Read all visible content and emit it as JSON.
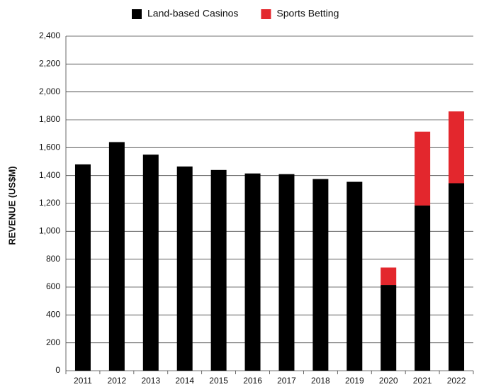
{
  "chart_data": {
    "type": "stacked_bar",
    "y_label": "REVENUE (US$M)",
    "categories": [
      "2011",
      "2012",
      "2013",
      "2014",
      "2015",
      "2016",
      "2017",
      "2018",
      "2019",
      "2020",
      "2021",
      "2022"
    ],
    "series": [
      {
        "name": "Land-based Casinos",
        "color": "#000000",
        "values": [
          1480,
          1640,
          1550,
          1465,
          1440,
          1415,
          1410,
          1375,
          1355,
          615,
          1185,
          1345
        ]
      },
      {
        "name": "Sports Betting",
        "color": "#e3272d",
        "values": [
          null,
          null,
          null,
          null,
          null,
          null,
          null,
          null,
          null,
          125,
          530,
          515
        ]
      }
    ],
    "ylim": [
      0,
      2400
    ],
    "yticks": [
      0,
      200,
      400,
      600,
      800,
      {
        "value": 1000,
        "label": "1,000"
      },
      {
        "value": 1200,
        "label": "1,200"
      },
      {
        "value": 1400,
        "label": "1,400"
      },
      {
        "value": 1600,
        "label": "1,600"
      },
      {
        "value": 1800,
        "label": "1,800"
      },
      {
        "value": 2000,
        "label": "2,000"
      },
      {
        "value": 2200,
        "label": "2,200"
      },
      {
        "value": 2400,
        "label": "2,400"
      }
    ],
    "grid": true,
    "legend": "top"
  }
}
